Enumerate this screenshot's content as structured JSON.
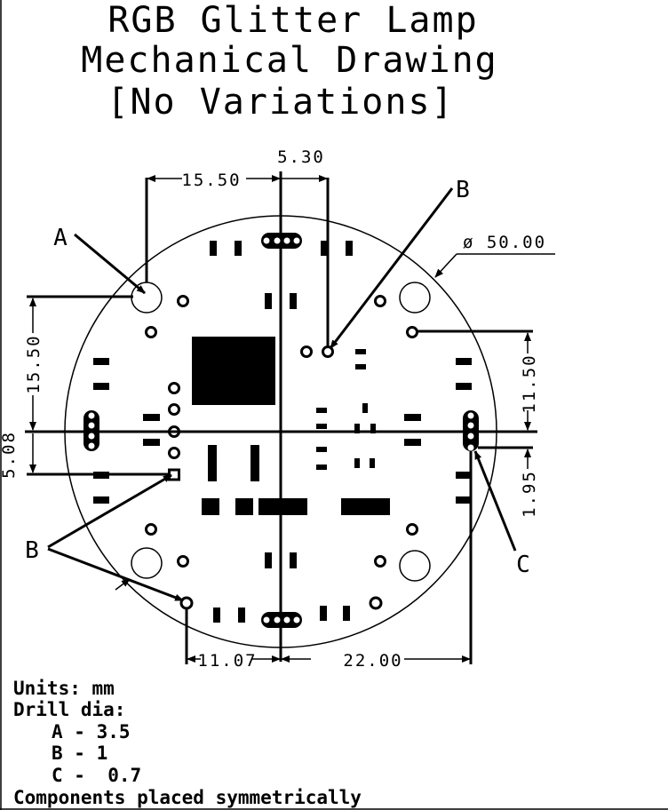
{
  "title": {
    "line1": "RGB Glitter Lamp",
    "line2": "Mechanical Drawing",
    "line3": "[No Variations]"
  },
  "dimensions": {
    "top_left_width": "15.50",
    "top_center_offset": "5.30",
    "diameter": "ø 50.00",
    "left_height": "15.50",
    "left_small": "5.08",
    "right_height": "11.50",
    "right_small": "1.95",
    "bottom_left": "11.07",
    "bottom_right": "22.00"
  },
  "callouts": {
    "a_top_left": "A",
    "b_top_right": "B",
    "b_bottom_left": "B",
    "c_right": "C"
  },
  "notes": {
    "units": "Units: mm",
    "drill_heading": "Drill dia:",
    "drill_a": "A - 3.5",
    "drill_b": "B - 1",
    "drill_c": "C -  0.7",
    "placement": "Components placed symmetrically"
  }
}
